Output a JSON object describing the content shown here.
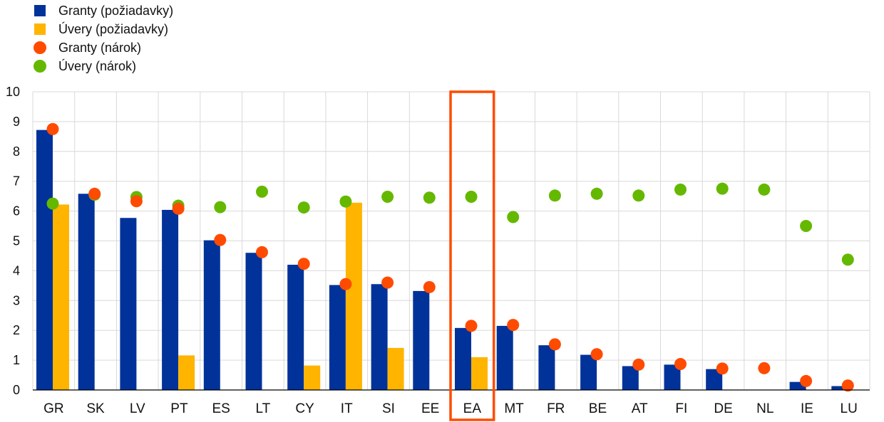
{
  "chart_data": {
    "type": "bar",
    "categories": [
      "GR",
      "SK",
      "LV",
      "PT",
      "ES",
      "LT",
      "CY",
      "IT",
      "SI",
      "EE",
      "EA",
      "MT",
      "FR",
      "BE",
      "AT",
      "FI",
      "DE",
      "NL",
      "IE",
      "LU"
    ],
    "highlight_category": "EA",
    "ylim": [
      0,
      10
    ],
    "yticks": [
      "0",
      "1",
      "2",
      "3",
      "4",
      "5",
      "6",
      "7",
      "8",
      "9",
      "10"
    ],
    "grid": true,
    "legend_position": "top-left",
    "series": [
      {
        "name": "Granty (požiadavky)",
        "mark": "bar",
        "color": "#003299",
        "values": [
          8.72,
          6.58,
          5.77,
          6.04,
          5.02,
          4.6,
          4.2,
          3.52,
          3.55,
          3.32,
          2.08,
          2.15,
          1.5,
          1.18,
          0.8,
          0.85,
          0.7,
          null,
          0.27,
          0.13
        ]
      },
      {
        "name": "Úvery (požiadavky)",
        "mark": "bar",
        "color": "#FFB400",
        "values": [
          6.22,
          null,
          null,
          1.16,
          null,
          null,
          0.82,
          6.28,
          1.41,
          null,
          1.1,
          null,
          null,
          null,
          null,
          null,
          null,
          null,
          null,
          null
        ]
      },
      {
        "name": "Granty (nárok)",
        "mark": "dot",
        "color": "#FF4B00",
        "values": [
          8.75,
          6.58,
          6.33,
          6.08,
          5.03,
          4.62,
          4.23,
          3.55,
          3.6,
          3.45,
          2.15,
          2.18,
          1.53,
          1.2,
          0.85,
          0.87,
          0.72,
          0.73,
          0.3,
          0.15
        ]
      },
      {
        "name": "Úvery (nárok)",
        "mark": "dot",
        "color": "#65B800",
        "values": [
          6.25,
          6.55,
          6.47,
          6.18,
          6.13,
          6.65,
          6.12,
          6.32,
          6.48,
          6.45,
          6.48,
          5.8,
          6.52,
          6.58,
          6.52,
          6.72,
          6.75,
          6.72,
          5.5,
          4.37
        ]
      }
    ]
  }
}
